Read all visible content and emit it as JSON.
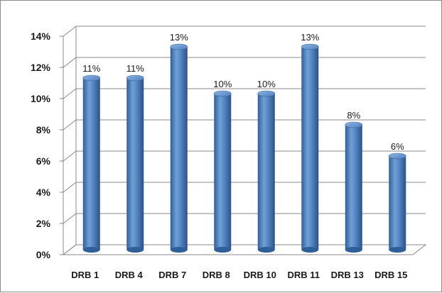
{
  "chart_data": {
    "type": "bar",
    "categories": [
      "DRB 1",
      "DRB 4",
      "DRB 7",
      "DRB 8",
      "DRB 10",
      "DRB 11",
      "DRB 13",
      "DRB 15"
    ],
    "values": [
      11,
      11,
      13,
      10,
      10,
      13,
      8,
      6
    ],
    "data_labels": [
      "11%",
      "11%",
      "13%",
      "10%",
      "10%",
      "13%",
      "8%",
      "6%"
    ],
    "y_tick_labels": [
      "0%",
      "2%",
      "4%",
      "6%",
      "8%",
      "10%",
      "12%",
      "14%"
    ],
    "ylim": [
      0,
      14
    ],
    "y_unit": "%",
    "grid": true,
    "legend": "none",
    "style": "3d-cylinder",
    "bar_color": "#4a7ebb",
    "title": "",
    "xlabel": "",
    "ylabel": ""
  }
}
